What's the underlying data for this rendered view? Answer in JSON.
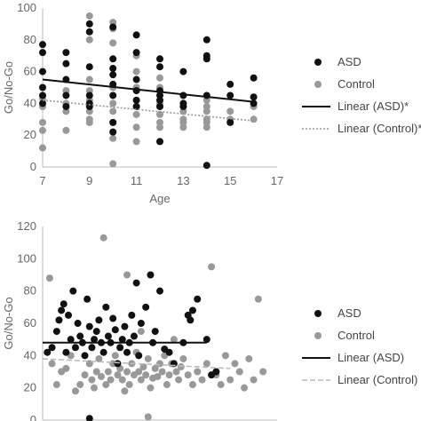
{
  "chart_data": [
    {
      "type": "scatter",
      "xlabel": "Age",
      "ylabel": "Go/No-Go",
      "xlim": [
        7,
        17
      ],
      "ylim": [
        0,
        100
      ],
      "xticks": [
        7,
        9,
        11,
        13,
        15,
        17
      ],
      "yticks": [
        0,
        20,
        40,
        60,
        80,
        100
      ],
      "grid": false,
      "legend_position": "right",
      "series": [
        {
          "name": "ASD",
          "color": "#111111",
          "points": [
            [
              7,
              77
            ],
            [
              7,
              72
            ],
            [
              7,
              60
            ],
            [
              7,
              50
            ],
            [
              7,
              45
            ],
            [
              7,
              40
            ],
            [
              8,
              72
            ],
            [
              8,
              65
            ],
            [
              8,
              55
            ],
            [
              8,
              45
            ],
            [
              8,
              38
            ],
            [
              9,
              90
            ],
            [
              9,
              85
            ],
            [
              9,
              63
            ],
            [
              9,
              45
            ],
            [
              9,
              40
            ],
            [
              9,
              38
            ],
            [
              10,
              88
            ],
            [
              10,
              68
            ],
            [
              10,
              62
            ],
            [
              10,
              58
            ],
            [
              10,
              52
            ],
            [
              10,
              45
            ],
            [
              10,
              28
            ],
            [
              10,
              22
            ],
            [
              11,
              83
            ],
            [
              11,
              72
            ],
            [
              11,
              55
            ],
            [
              11,
              48
            ],
            [
              11,
              42
            ],
            [
              11,
              38
            ],
            [
              12,
              68
            ],
            [
              12,
              63
            ],
            [
              12,
              48
            ],
            [
              12,
              45
            ],
            [
              12,
              42
            ],
            [
              12,
              38
            ],
            [
              12,
              16
            ],
            [
              13,
              60
            ],
            [
              13,
              45
            ],
            [
              13,
              40
            ],
            [
              13,
              38
            ],
            [
              14,
              80
            ],
            [
              14,
              70
            ],
            [
              14,
              68
            ],
            [
              14,
              45
            ],
            [
              14,
              1
            ],
            [
              15,
              52
            ],
            [
              15,
              45
            ],
            [
              15,
              28
            ],
            [
              16,
              56
            ],
            [
              16,
              44
            ],
            [
              16,
              40
            ]
          ]
        },
        {
          "name": "Control",
          "color": "#999999",
          "points": [
            [
              7,
              43
            ],
            [
              7,
              38
            ],
            [
              7,
              28
            ],
            [
              7,
              23
            ],
            [
              7,
              12
            ],
            [
              8,
              48
            ],
            [
              8,
              40
            ],
            [
              8,
              35
            ],
            [
              8,
              23
            ],
            [
              9,
              95
            ],
            [
              9,
              80
            ],
            [
              9,
              55
            ],
            [
              9,
              48
            ],
            [
              9,
              42
            ],
            [
              9,
              38
            ],
            [
              9,
              35
            ],
            [
              9,
              30
            ],
            [
              9,
              28
            ],
            [
              10,
              91
            ],
            [
              10,
              87
            ],
            [
              10,
              78
            ],
            [
              10,
              50
            ],
            [
              10,
              40
            ],
            [
              10,
              35
            ],
            [
              10,
              28
            ],
            [
              10,
              22
            ],
            [
              10,
              18
            ],
            [
              10,
              2
            ],
            [
              11,
              70
            ],
            [
              11,
              60
            ],
            [
              11,
              50
            ],
            [
              11,
              42
            ],
            [
              11,
              38
            ],
            [
              11,
              33
            ],
            [
              11,
              25
            ],
            [
              11,
              16
            ],
            [
              12,
              56
            ],
            [
              12,
              50
            ],
            [
              12,
              40
            ],
            [
              12,
              38
            ],
            [
              12,
              33
            ],
            [
              12,
              28
            ],
            [
              12,
              25
            ],
            [
              13,
              35
            ],
            [
              13,
              30
            ],
            [
              13,
              28
            ],
            [
              13,
              25
            ],
            [
              14,
              42
            ],
            [
              14,
              38
            ],
            [
              14,
              35
            ],
            [
              14,
              30
            ],
            [
              14,
              28
            ],
            [
              14,
              25
            ],
            [
              15,
              35
            ],
            [
              15,
              30
            ],
            [
              16,
              38
            ],
            [
              16,
              30
            ]
          ]
        },
        {
          "name": "Linear (ASD)*",
          "color": "#111111",
          "style": "solid",
          "x": [
            7,
            16
          ],
          "y": [
            55,
            41
          ]
        },
        {
          "name": "Linear (Control)*",
          "color": "#999999",
          "style": "dotted",
          "x": [
            7,
            16
          ],
          "y": [
            42,
            29
          ]
        }
      ]
    },
    {
      "type": "scatter",
      "xlabel": "",
      "ylabel": "Go/No-Go",
      "ylim": [
        0,
        120
      ],
      "xlim": [
        0,
        100
      ],
      "yticks": [
        0,
        20,
        40,
        60,
        80,
        100,
        120
      ],
      "grid": false,
      "legend_position": "right",
      "series": [
        {
          "name": "ASD",
          "color": "#111111",
          "points": [
            [
              2,
              42
            ],
            [
              4,
              45
            ],
            [
              6,
              55
            ],
            [
              7,
              62
            ],
            [
              8,
              68
            ],
            [
              9,
              72
            ],
            [
              10,
              42
            ],
            [
              11,
              65
            ],
            [
              12,
              50
            ],
            [
              13,
              80
            ],
            [
              14,
              45
            ],
            [
              15,
              60
            ],
            [
              16,
              52
            ],
            [
              17,
              48
            ],
            [
              18,
              40
            ],
            [
              19,
              75
            ],
            [
              20,
              58
            ],
            [
              21,
              45
            ],
            [
              22,
              50
            ],
            [
              23,
              55
            ],
            [
              24,
              62
            ],
            [
              25,
              48
            ],
            [
              26,
              42
            ],
            [
              27,
              70
            ],
            [
              28,
              52
            ],
            [
              29,
              48
            ],
            [
              30,
              63
            ],
            [
              31,
              56
            ],
            [
              32,
              35
            ],
            [
              33,
              45
            ],
            [
              34,
              50
            ],
            [
              35,
              58
            ],
            [
              36,
              42
            ],
            [
              37,
              48
            ],
            [
              38,
              65
            ],
            [
              39,
              52
            ],
            [
              40,
              85
            ],
            [
              41,
              40
            ],
            [
              42,
              60
            ],
            [
              44,
              70
            ],
            [
              46,
              90
            ],
            [
              47,
              48
            ],
            [
              48,
              55
            ],
            [
              50,
              80
            ],
            [
              52,
              44
            ],
            [
              54,
              42
            ],
            [
              56,
              35
            ],
            [
              60,
              48
            ],
            [
              62,
              65
            ],
            [
              63,
              62
            ],
            [
              64,
              68
            ],
            [
              66,
              75
            ],
            [
              70,
              50
            ],
            [
              72,
              28
            ],
            [
              74,
              30
            ],
            [
              20,
              1
            ]
          ]
        },
        {
          "name": "Control",
          "color": "#999999",
          "points": [
            [
              3,
              88
            ],
            [
              4,
              35
            ],
            [
              6,
              22
            ],
            [
              8,
              30
            ],
            [
              10,
              32
            ],
            [
              12,
              40
            ],
            [
              14,
              18
            ],
            [
              16,
              22
            ],
            [
              18,
              28
            ],
            [
              20,
              35
            ],
            [
              21,
              25
            ],
            [
              22,
              20
            ],
            [
              23,
              30
            ],
            [
              24,
              38
            ],
            [
              25,
              27
            ],
            [
              26,
              113
            ],
            [
              27,
              22
            ],
            [
              28,
              30
            ],
            [
              29,
              25
            ],
            [
              30,
              35
            ],
            [
              31,
              40
            ],
            [
              32,
              28
            ],
            [
              33,
              32
            ],
            [
              34,
              25
            ],
            [
              35,
              18
            ],
            [
              36,
              30
            ],
            [
              37,
              22
            ],
            [
              38,
              35
            ],
            [
              39,
              28
            ],
            [
              40,
              42
            ],
            [
              41,
              30
            ],
            [
              42,
              25
            ],
            [
              43,
              33
            ],
            [
              44,
              28
            ],
            [
              45,
              38
            ],
            [
              46,
              20
            ],
            [
              47,
              26
            ],
            [
              48,
              32
            ],
            [
              49,
              27
            ],
            [
              50,
              35
            ],
            [
              51,
              30
            ],
            [
              52,
              40
            ],
            [
              53,
              22
            ],
            [
              54,
              28
            ],
            [
              55,
              35
            ],
            [
              56,
              50
            ],
            [
              57,
              30
            ],
            [
              58,
              25
            ],
            [
              59,
              33
            ],
            [
              60,
              38
            ],
            [
              62,
              28
            ],
            [
              64,
              22
            ],
            [
              66,
              30
            ],
            [
              68,
              25
            ],
            [
              70,
              35
            ],
            [
              72,
              95
            ],
            [
              74,
              28
            ],
            [
              76,
              22
            ],
            [
              78,
              40
            ],
            [
              80,
              25
            ],
            [
              82,
              35
            ],
            [
              84,
              30
            ],
            [
              86,
              20
            ],
            [
              88,
              38
            ],
            [
              90,
              25
            ],
            [
              92,
              75
            ],
            [
              94,
              30
            ],
            [
              45,
              2
            ],
            [
              36,
              90
            ],
            [
              42,
              55
            ]
          ]
        },
        {
          "name": "Linear (ASD)",
          "color": "#111111",
          "style": "solid",
          "x": [
            0,
            70
          ],
          "y": [
            48,
            48
          ]
        },
        {
          "name": "Linear (Control)",
          "color": "#bbbbbb",
          "style": "dashed",
          "x": [
            0,
            80
          ],
          "y": [
            38,
            32
          ]
        }
      ]
    }
  ]
}
